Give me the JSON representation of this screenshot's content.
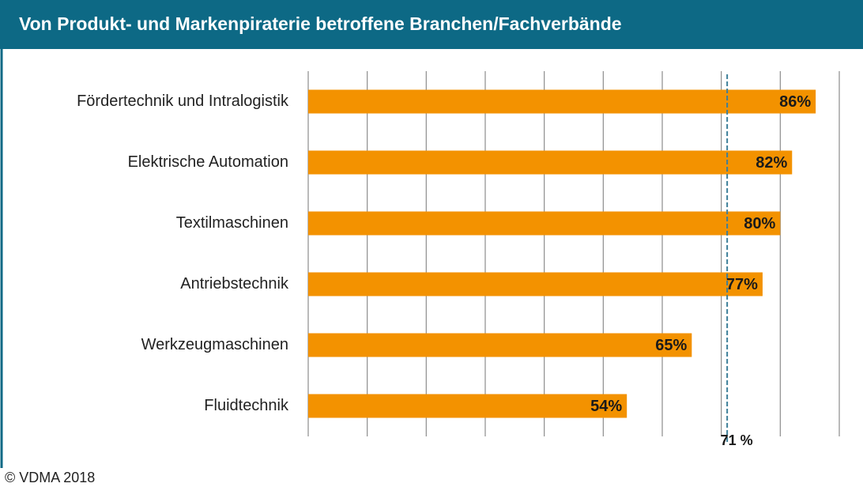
{
  "chart_data": {
    "type": "bar",
    "orientation": "horizontal",
    "title": "Von Produkt- und Markenpiraterie betroffene Branchen/Fachverbände",
    "categories": [
      "Fördertechnik und Intralogistik",
      "Elektrische Automation",
      "Textilmaschinen",
      "Antriebstechnik",
      "Werkzeugmaschinen",
      "Fluidtechnik"
    ],
    "values": [
      86,
      82,
      80,
      77,
      65,
      54
    ],
    "value_labels": [
      "86%",
      "82%",
      "80%",
      "77%",
      "65%",
      "54%"
    ],
    "color": "#f39200",
    "xlim": [
      0,
      90
    ],
    "xticks": [
      0,
      10,
      20,
      30,
      40,
      50,
      60,
      70,
      80,
      90
    ],
    "grid": true,
    "reference_line": {
      "value": 71,
      "label": "71 %",
      "color": "#3d7f99"
    },
    "source": "© VDMA 2018"
  }
}
